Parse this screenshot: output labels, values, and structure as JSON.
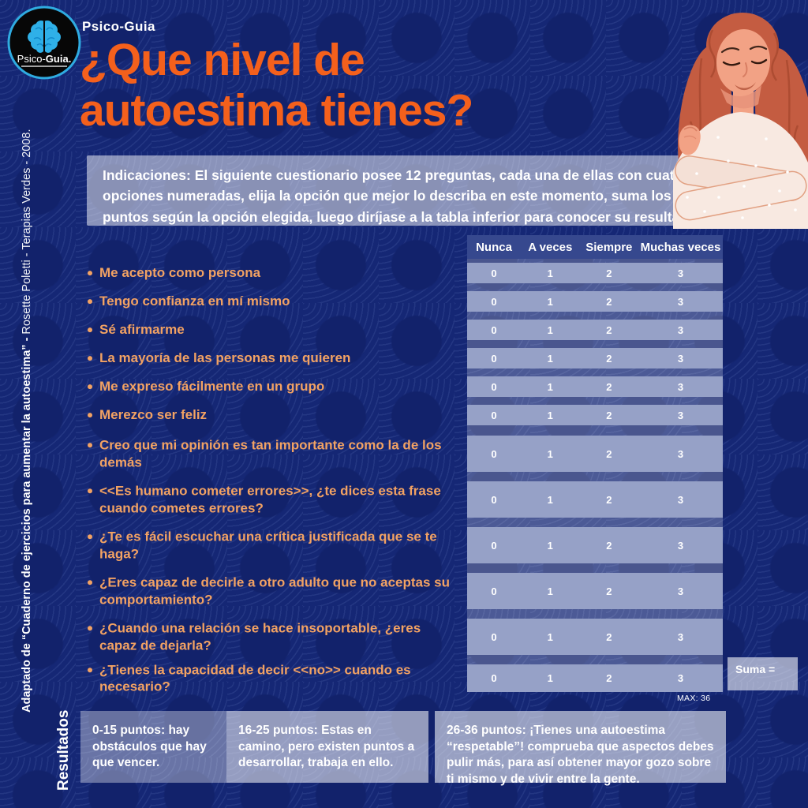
{
  "brand": {
    "header": "Psico-Guia",
    "logo_part1": "Psico-",
    "logo_part2": "Guia."
  },
  "title": {
    "line1": "¿Que nivel de",
    "line2": "autoestima tienes?"
  },
  "indications": "Indicaciones: El siguiente cuestionario posee 12 preguntas, cada una de ellas con cuatro opciones numeradas, elija la opción que mejor lo describa en este momento, suma los puntos según la opción elegida, luego diríjase a la tabla inferior para conocer su resultado.",
  "side_credit": {
    "bold": "Adaptado de “Cuaderno de ejercicios para aumentar la autoestima” - ",
    "regular": "Rosette Poletti - Terapias Verdes - 2008."
  },
  "questionnaire": {
    "options": [
      "Nunca",
      "A veces",
      "Siempre",
      "Muchas veces"
    ],
    "questions": [
      "Me acepto como persona",
      "Tengo confianza en mí mismo",
      "Sé afirmarme",
      "La mayoría de las personas me quieren",
      "Me expreso fácilmente en un grupo",
      "Merezco ser feliz",
      "Creo que mi opinión es tan importante como la de los demás",
      "<<Es humano cometer errores>>, ¿te dices esta frase cuando cometes errores?",
      "¿Te es fácil escuchar una crítica justificada que se te haga?",
      "¿Eres capaz de decirle a otro adulto que no aceptas su comportamiento?",
      "¿Cuando una relación se hace insoportable, ¿eres capaz de dejarla?",
      "¿Tienes la capacidad de decir <<no>> cuando es necesario?"
    ],
    "rows": [
      [
        0,
        1,
        2,
        3
      ],
      [
        0,
        1,
        2,
        3
      ],
      [
        0,
        1,
        2,
        3
      ],
      [
        0,
        1,
        2,
        3
      ],
      [
        0,
        1,
        2,
        3
      ],
      [
        0,
        1,
        2,
        3
      ],
      [
        0,
        1,
        2,
        3
      ],
      [
        0,
        1,
        2,
        3
      ],
      [
        0,
        1,
        2,
        3
      ],
      [
        0,
        1,
        2,
        3
      ],
      [
        0,
        1,
        2,
        3
      ],
      [
        0,
        1,
        2,
        3
      ]
    ],
    "suma_label": "Suma =",
    "max_label": "MAX: 36"
  },
  "results": {
    "label": "Resultados",
    "boxes": [
      {
        "text": "0-15 puntos: hay obstáculos que hay que vencer."
      },
      {
        "text": "16-25 puntos: Estas en camino, pero existen puntos a desarrollar, trabaja en ello."
      },
      {
        "text": "26-36 puntos: ¡Tienes una autoestima “respetable”! comprueba que aspectos debes pulir más, para así obtener mayor gozo sobre ti mismo y de vivir entre la gente."
      }
    ]
  },
  "colors": {
    "background_navy": "#152775",
    "title_orange": "#F4601C",
    "question_orange": "#F2A263",
    "table_row_blue": "#96A1C7",
    "table_header_blue": "#36488E",
    "logo_ring_blue": "#2FABE1"
  },
  "icons": {
    "logo": "brain-icon"
  }
}
